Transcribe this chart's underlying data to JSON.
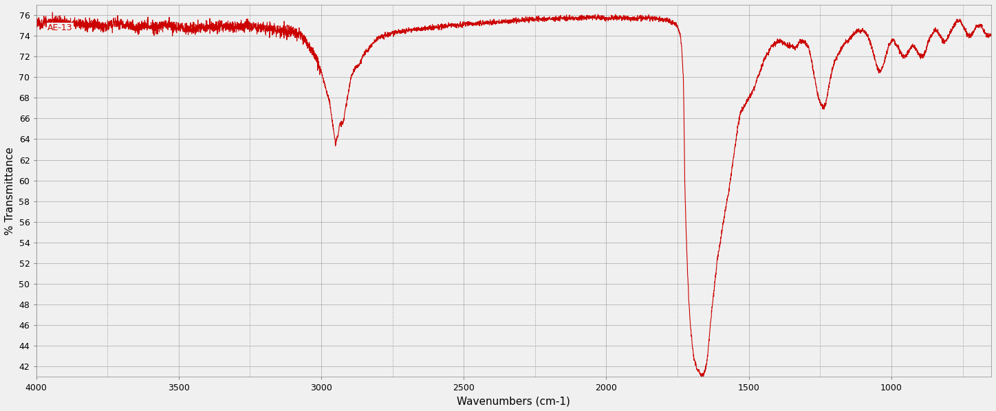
{
  "title": "AE-13",
  "xlabel": "Wavenumbers (cm-1)",
  "ylabel": "% Transmittance",
  "xlim": [
    4000,
    650
  ],
  "ylim": [
    41,
    77
  ],
  "yticks": [
    42,
    44,
    46,
    48,
    50,
    52,
    54,
    56,
    58,
    60,
    62,
    64,
    66,
    68,
    70,
    72,
    74,
    76
  ],
  "xticks": [
    4000,
    3500,
    3000,
    2500,
    2000,
    1500,
    1000
  ],
  "line_color": "#cc0000",
  "bg_color": "#f0f0f0",
  "grid_color": "#888888",
  "label_color": "#cc0000"
}
